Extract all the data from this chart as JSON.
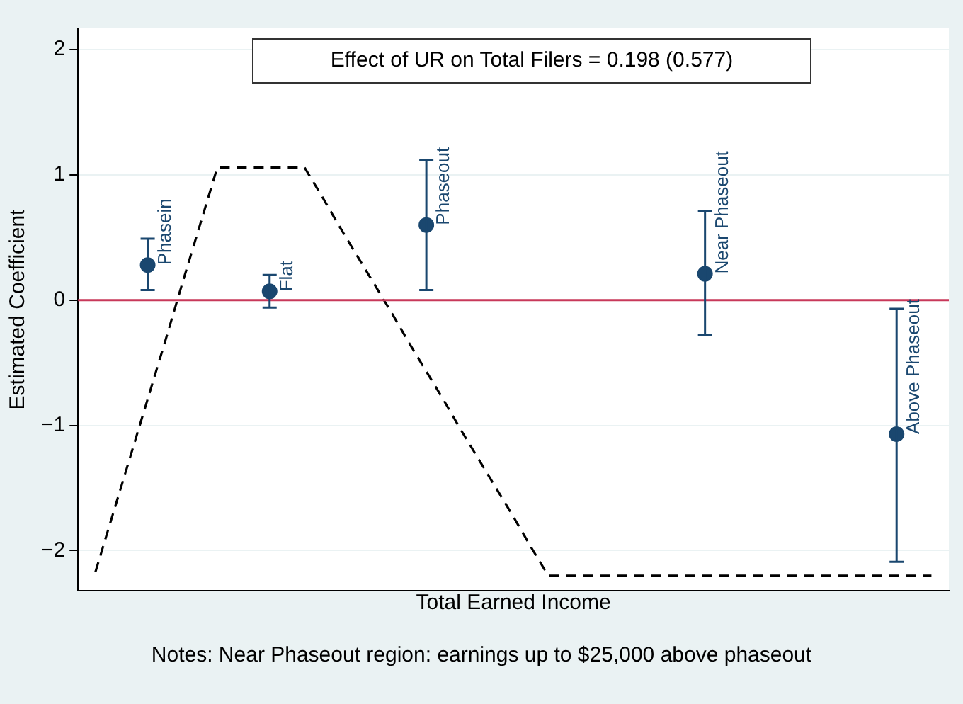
{
  "chart_data": {
    "type": "scatter",
    "ylabel": "Estimated Coefficient",
    "xlabel": "Total Earned Income",
    "categories": [
      null,
      null,
      null,
      null,
      null,
      null,
      null,
      null,
      null,
      null,
      null,
      null,
      null,
      null,
      null,
      null,
      null,
      null,
      null,
      null,
      null,
      null,
      null,
      null,
      null,
      null,
      null,
      null,
      null,
      null,
      null,
      null,
      null,
      null,
      null,
      null,
      null,
      null,
      null,
      null,
      null,
      null,
      null,
      null,
      null,
      null,
      null,
      null,
      null,
      null,
      null
    ],
    "ylim": [
      -2.32,
      2.17
    ],
    "yticks": [
      {
        "value": -2,
        "label": "−2"
      },
      {
        "value": -1,
        "label": "−1"
      },
      0,
      1,
      2
    ],
    "tick_labels": "y",
    "grid": "y",
    "series": [
      {
        "name": "Phasein",
        "type": "scatter",
        "color": "#1a476f",
        "marker": "circle",
        "values": [
          null,
          null,
          null,
          null,
          0.28,
          null,
          null,
          null,
          null,
          null,
          null,
          null,
          null,
          null,
          null,
          null,
          null,
          null,
          null,
          null,
          null,
          null,
          null,
          null,
          null,
          null,
          null,
          null,
          null,
          null,
          null,
          null,
          null,
          null,
          null,
          null,
          null,
          null,
          null,
          null,
          null,
          null,
          null,
          null,
          null,
          null,
          null,
          null,
          null,
          null,
          null
        ],
        "errors": [
          null,
          null,
          null,
          null,
          [
            0.08,
            0.49
          ],
          null,
          null,
          null,
          null,
          null,
          null,
          null,
          null,
          null,
          null,
          null,
          null,
          null,
          null,
          null,
          null,
          null,
          null,
          null,
          null,
          null,
          null,
          null,
          null,
          null,
          null,
          null,
          null,
          null,
          null,
          null,
          null,
          null,
          null,
          null,
          null,
          null,
          null,
          null,
          null,
          null,
          null,
          null,
          null,
          null,
          null
        ]
      },
      {
        "name": "Flat",
        "type": "scatter",
        "color": "#1a476f",
        "marker": "circle",
        "values": [
          null,
          null,
          null,
          null,
          null,
          null,
          null,
          null,
          null,
          null,
          null,
          0.07,
          null,
          null,
          null,
          null,
          null,
          null,
          null,
          null,
          null,
          null,
          null,
          null,
          null,
          null,
          null,
          null,
          null,
          null,
          null,
          null,
          null,
          null,
          null,
          null,
          null,
          null,
          null,
          null,
          null,
          null,
          null,
          null,
          null,
          null,
          null,
          null,
          null,
          null,
          null
        ],
        "errors": [
          null,
          null,
          null,
          null,
          null,
          null,
          null,
          null,
          null,
          null,
          null,
          [
            -0.06,
            0.2
          ],
          null,
          null,
          null,
          null,
          null,
          null,
          null,
          null,
          null,
          null,
          null,
          null,
          null,
          null,
          null,
          null,
          null,
          null,
          null,
          null,
          null,
          null,
          null,
          null,
          null,
          null,
          null,
          null,
          null,
          null,
          null,
          null,
          null,
          null,
          null,
          null,
          null,
          null,
          null
        ]
      },
      {
        "name": "Phaseout",
        "type": "scatter",
        "color": "#1a476f",
        "marker": "circle",
        "values": [
          null,
          null,
          null,
          null,
          null,
          null,
          null,
          null,
          null,
          null,
          null,
          null,
          null,
          null,
          null,
          null,
          null,
          null,
          null,
          null,
          0.6,
          null,
          null,
          null,
          null,
          null,
          null,
          null,
          null,
          null,
          null,
          null,
          null,
          null,
          null,
          null,
          null,
          null,
          null,
          null,
          null,
          null,
          null,
          null,
          null,
          null,
          null,
          null,
          null,
          null,
          null
        ],
        "errors": [
          null,
          null,
          null,
          null,
          null,
          null,
          null,
          null,
          null,
          null,
          null,
          null,
          null,
          null,
          null,
          null,
          null,
          null,
          null,
          null,
          [
            0.08,
            1.12
          ],
          null,
          null,
          null,
          null,
          null,
          null,
          null,
          null,
          null,
          null,
          null,
          null,
          null,
          null,
          null,
          null,
          null,
          null,
          null,
          null,
          null,
          null,
          null,
          null,
          null,
          null,
          null,
          null,
          null,
          null
        ]
      },
      {
        "name": "Near Phaseout",
        "type": "scatter",
        "color": "#1a476f",
        "marker": "circle",
        "values": [
          null,
          null,
          null,
          null,
          null,
          null,
          null,
          null,
          null,
          null,
          null,
          null,
          null,
          null,
          null,
          null,
          null,
          null,
          null,
          null,
          null,
          null,
          null,
          null,
          null,
          null,
          null,
          null,
          null,
          null,
          null,
          null,
          null,
          null,
          null,
          null,
          0.21,
          null,
          null,
          null,
          null,
          null,
          null,
          null,
          null,
          null,
          null,
          null,
          null,
          null,
          null
        ],
        "errors": [
          null,
          null,
          null,
          null,
          null,
          null,
          null,
          null,
          null,
          null,
          null,
          null,
          null,
          null,
          null,
          null,
          null,
          null,
          null,
          null,
          null,
          null,
          null,
          null,
          null,
          null,
          null,
          null,
          null,
          null,
          null,
          null,
          null,
          null,
          null,
          null,
          [
            -0.28,
            0.71
          ],
          null,
          null,
          null,
          null,
          null,
          null,
          null,
          null,
          null,
          null,
          null,
          null,
          null,
          null
        ]
      },
      {
        "name": "Above Phaseout",
        "type": "scatter",
        "color": "#1a476f",
        "marker": "circle",
        "values": [
          null,
          null,
          null,
          null,
          null,
          null,
          null,
          null,
          null,
          null,
          null,
          null,
          null,
          null,
          null,
          null,
          null,
          null,
          null,
          null,
          null,
          null,
          null,
          null,
          null,
          null,
          null,
          null,
          null,
          null,
          null,
          null,
          null,
          null,
          null,
          null,
          null,
          null,
          null,
          null,
          null,
          null,
          null,
          null,
          null,
          null,
          null,
          -1.07,
          null,
          null,
          null
        ],
        "errors": [
          null,
          null,
          null,
          null,
          null,
          null,
          null,
          null,
          null,
          null,
          null,
          null,
          null,
          null,
          null,
          null,
          null,
          null,
          null,
          null,
          null,
          null,
          null,
          null,
          null,
          null,
          null,
          null,
          null,
          null,
          null,
          null,
          null,
          null,
          null,
          null,
          null,
          null,
          null,
          null,
          null,
          null,
          null,
          null,
          null,
          null,
          null,
          [
            -2.09,
            -0.07
          ],
          null,
          null,
          null
        ]
      },
      {
        "type": "line",
        "color": "#000000",
        "marker": "none",
        "line_style": "dashed",
        "values": [
          null,
          -2.17,
          -1.71,
          -1.25,
          -0.79,
          -0.33,
          0.14,
          0.6,
          1.06,
          1.06,
          1.06,
          1.06,
          1.06,
          1.06,
          0.83,
          0.59,
          0.36,
          0.13,
          -0.1,
          -0.34,
          -0.57,
          -0.8,
          -1.04,
          -1.27,
          -1.5,
          -1.73,
          -1.97,
          -2.2,
          -2.2,
          -2.2,
          -2.2,
          -2.2,
          -2.2,
          -2.2,
          -2.2,
          -2.2,
          -2.2,
          -2.2,
          -2.2,
          -2.2,
          -2.2,
          -2.2,
          -2.2,
          -2.2,
          -2.2,
          -2.2,
          -2.2,
          -2.2,
          -2.2,
          -2.2,
          null
        ]
      }
    ],
    "ref_lines": [
      {
        "axis": "y",
        "value": 0,
        "color": "#c8385a"
      }
    ],
    "annotations": [
      "Effect of UR on Total Filers = 0.198 (0.577)",
      "Notes: Near Phaseout region: earnings up to $25,000 above phaseout"
    ]
  }
}
